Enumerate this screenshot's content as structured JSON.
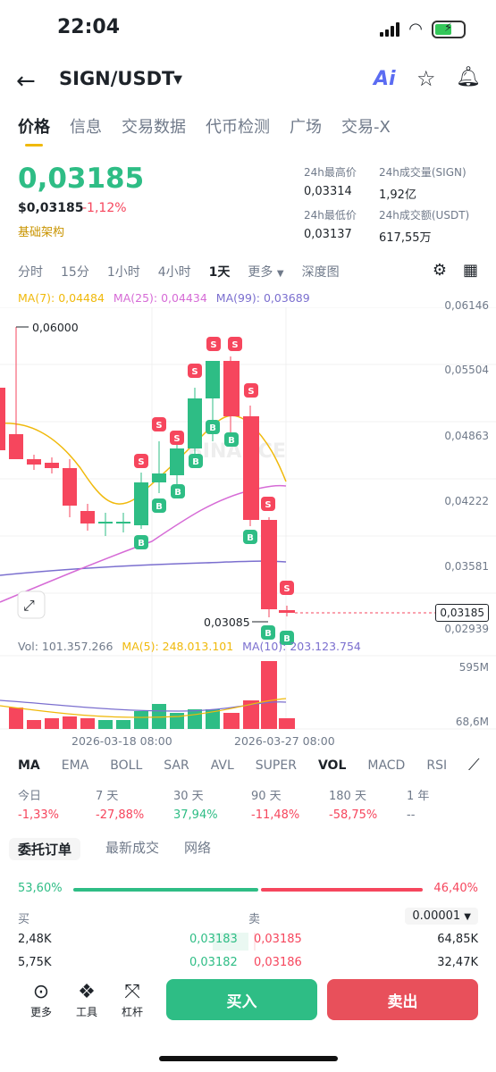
{
  "status": {
    "time": "22:04"
  },
  "header": {
    "pair": "SIGN/USDT",
    "ai_label": "Ai"
  },
  "tabs": [
    "价格",
    "信息",
    "交易数据",
    "代币检测",
    "广场",
    "交易-X"
  ],
  "price": {
    "last": "0,03185",
    "usd": "$0,03185",
    "change": "-1,12%",
    "tag": "基础架构",
    "color_up": "#2ebd85",
    "color_down": "#f6465d"
  },
  "stats": {
    "high_label": "24h最高价",
    "high": "0,03314",
    "vol_label": "24h成交量(SIGN)",
    "vol": "1,92亿",
    "low_label": "24h最低价",
    "low": "0,03137",
    "amt_label": "24h成交额(USDT)",
    "amt": "617,55万"
  },
  "intervals": {
    "items": [
      "分时",
      "15分",
      "1小时",
      "4小时",
      "1天",
      "更多",
      "深度图"
    ],
    "active": "1天"
  },
  "ma": {
    "ma7": "MA(7): 0,04484",
    "ma25": "MA(25): 0,04434",
    "ma99": "MA(99): 0,03689"
  },
  "chart_axis": [
    "0,06146",
    "0,05504",
    "0,04863",
    "0,04222",
    "0,03581",
    "0,02939"
  ],
  "chart_labels": {
    "high_mark": "0,06000",
    "low_mark": "0,03085",
    "current": "0,03185",
    "watermark": "BINANCE",
    "buy_marker": "B",
    "sell_marker": "S"
  },
  "volume": {
    "vol": "Vol: 101.357.266",
    "ma5": "MA(5): 248.013.101",
    "ma10": "MA(10): 203.123.754",
    "axis_top": "595M",
    "axis_bottom": "68,6M"
  },
  "dates": [
    "2026-03-18 08:00",
    "2026-03-27 08:00"
  ],
  "indicators": [
    "MA",
    "EMA",
    "BOLL",
    "SAR",
    "AVL",
    "SUPER",
    "VOL",
    "MACD",
    "RSI"
  ],
  "performance": [
    {
      "label": "今日",
      "value": "-1,33%"
    },
    {
      "label": "7 天",
      "value": "-27,88%"
    },
    {
      "label": "30 天",
      "value": "37,94%"
    },
    {
      "label": "90 天",
      "value": "-11,48%"
    },
    {
      "label": "180 天",
      "value": "-58,75%"
    },
    {
      "label": "1 年",
      "value": "--"
    }
  ],
  "orderbook": {
    "tabs": [
      "委托订单",
      "最新成交",
      "网络"
    ],
    "buy_ratio": "53,60%",
    "sell_ratio": "46,40%",
    "buy_label": "买",
    "sell_label": "卖",
    "precision": "0.00001",
    "rows": [
      {
        "bid_qty": "2,48K",
        "bid_price": "0,03183",
        "ask_price": "0,03185",
        "ask_qty": "64,85K"
      },
      {
        "bid_qty": "5,75K",
        "bid_price": "0,03182",
        "ask_price": "0,03186",
        "ask_qty": "32,47K"
      }
    ]
  },
  "bottom": {
    "more": "更多",
    "tools": "工具",
    "leverage": "杠杆",
    "buy": "买入",
    "sell": "卖出"
  }
}
